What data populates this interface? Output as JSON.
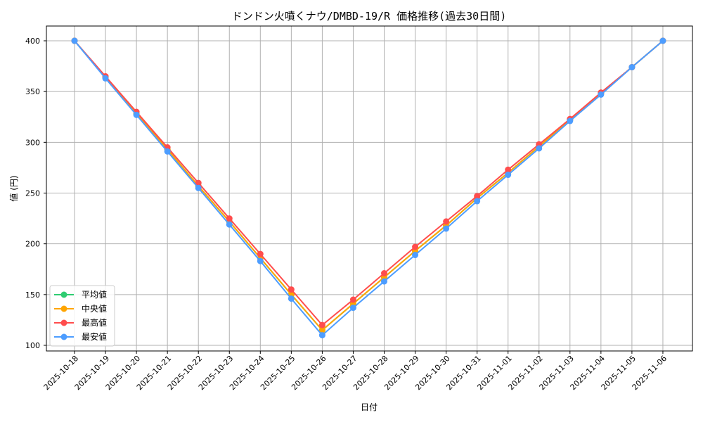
{
  "chart_data": {
    "type": "line",
    "title": "ドンドン火噴くナウ/DMBD-19/R 価格推移(過去30日間)",
    "xlabel": "日付",
    "ylabel": "値 (円)",
    "ylim": [
      95,
      415
    ],
    "yticks": [
      100,
      150,
      200,
      250,
      300,
      350,
      400
    ],
    "grid": true,
    "legend_position": "lower left",
    "categories": [
      "2025-10-18",
      "2025-10-19",
      "2025-10-20",
      "2025-10-21",
      "2025-10-22",
      "2025-10-23",
      "2025-10-24",
      "2025-10-25",
      "2025-10-26",
      "2025-10-27",
      "2025-10-28",
      "2025-10-29",
      "2025-10-30",
      "2025-10-31",
      "2025-11-01",
      "2025-11-02",
      "2025-11-03",
      "2025-11-04",
      "2025-11-05",
      "2025-11-06"
    ],
    "series": [
      {
        "name": "平均値",
        "color": "#2ecc71",
        "values": [
          400,
          364,
          328,
          293,
          257,
          222,
          186,
          150,
          115,
          141,
          167,
          193,
          218,
          245,
          270,
          296,
          322,
          348,
          374,
          400
        ]
      },
      {
        "name": "中央値",
        "color": "#ffa500",
        "values": [
          400,
          364,
          328,
          293,
          257,
          222,
          186,
          150,
          115,
          141,
          167,
          193,
          218,
          245,
          270,
          296,
          322,
          348,
          374,
          400
        ]
      },
      {
        "name": "最高値",
        "color": "#ff4d4d",
        "values": [
          400,
          365,
          330,
          295,
          260,
          225,
          190,
          155,
          120,
          145,
          171,
          197,
          222,
          247,
          273,
          298,
          323,
          349,
          374,
          400
        ]
      },
      {
        "name": "最安値",
        "color": "#4d9dff",
        "values": [
          400,
          363,
          327,
          291,
          255,
          219,
          183,
          146,
          110,
          137,
          163,
          189,
          215,
          242,
          268,
          294,
          321,
          347,
          374,
          400
        ]
      }
    ]
  }
}
